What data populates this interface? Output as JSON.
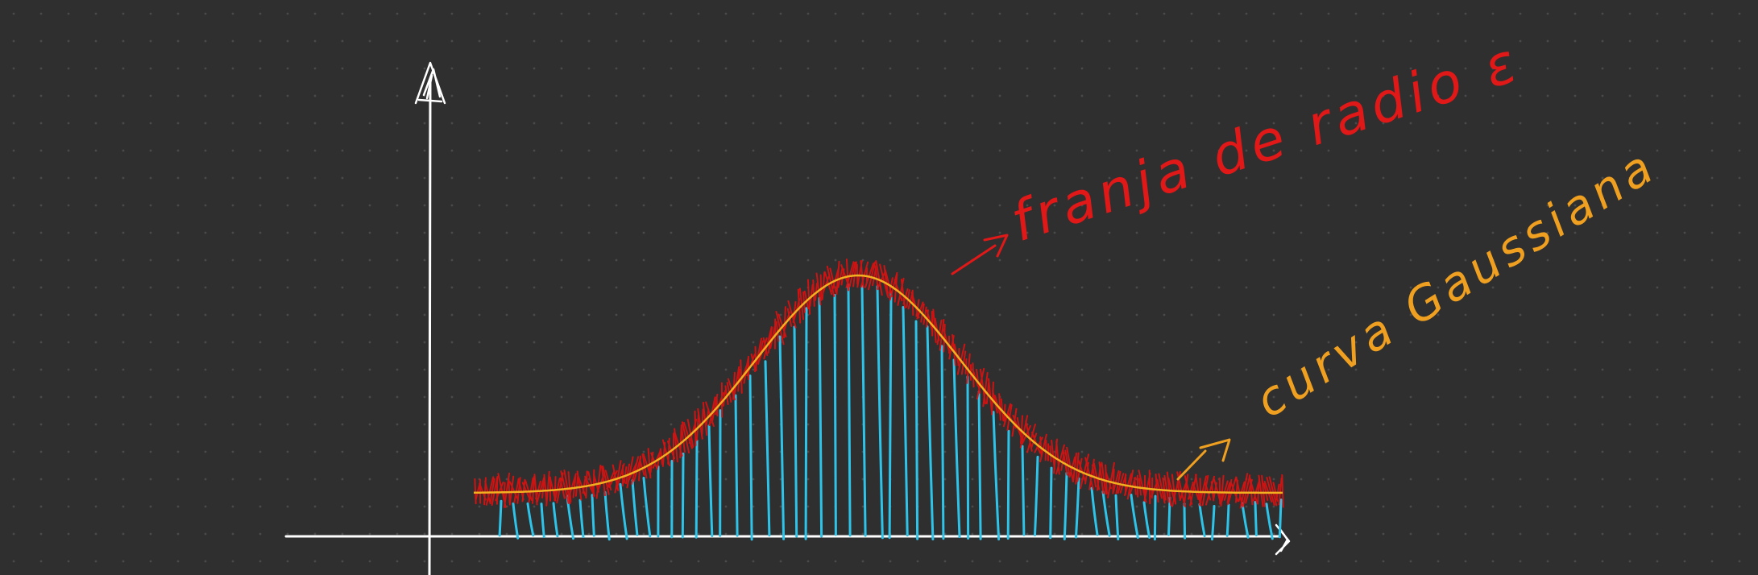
{
  "canvas": {
    "background": "#2f2f2f",
    "dot_color": "#4a4a4a"
  },
  "annotations": {
    "fringe_label": "franja de radio ε",
    "curve_label": "curva Gaussiana"
  },
  "colors": {
    "axes": "#ffffff",
    "fringe": "#e01010",
    "fringe_label": "#e01818",
    "curve": "#f2b020",
    "curve_label": "#f0a020",
    "bars": "#2ec4ea"
  }
}
